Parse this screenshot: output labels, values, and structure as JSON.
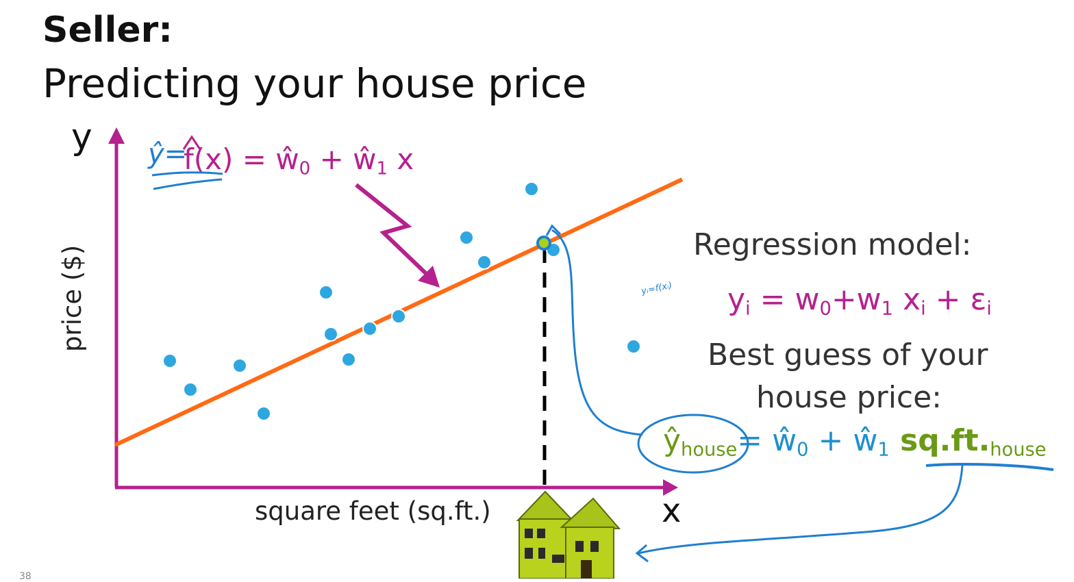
{
  "title": {
    "bold": "Seller:",
    "subtitle": "Predicting your house price"
  },
  "axes": {
    "y_letter": "y",
    "x_letter": "x",
    "ylabel": "price ($)",
    "xlabel": "square feet (sq.ft.)"
  },
  "formula_top": {
    "lhs": "f(x)",
    "rest": " = ŵ",
    "sub0": "0",
    "plus": " + ŵ",
    "sub1": "1",
    "x": " x",
    "handwritten_yhat": "ŷ="
  },
  "regression": {
    "heading": "Regression model:",
    "annotation": "yᵢ≈f(xᵢ)",
    "y": "y",
    "y_sub": "i",
    "eq": " = w",
    "w0_sub": "0",
    "plus_w": "+w",
    "w1_sub": "1",
    "x": " x",
    "x_sub": "i",
    "plus_eps": " + ε",
    "eps_sub": "i"
  },
  "best_guess": {
    "line1": "Best guess of your",
    "line2": "house price:",
    "yhat": "ŷ",
    "yhat_sub": "house",
    "eq_w0": "= ŵ",
    "w0_sub": "0",
    "plus_w1": " + ŵ",
    "w1_sub": "1",
    "sqft": " sq.ft.",
    "sqft_sub": "house"
  },
  "page_number": "38",
  "colors": {
    "axis": "#b5218e",
    "line": "#ff6a13",
    "points": "#2ea7e0",
    "handwriting": "#1f7fd0",
    "highlight": "#6a9a17"
  },
  "icons": [
    "house-icon"
  ]
}
